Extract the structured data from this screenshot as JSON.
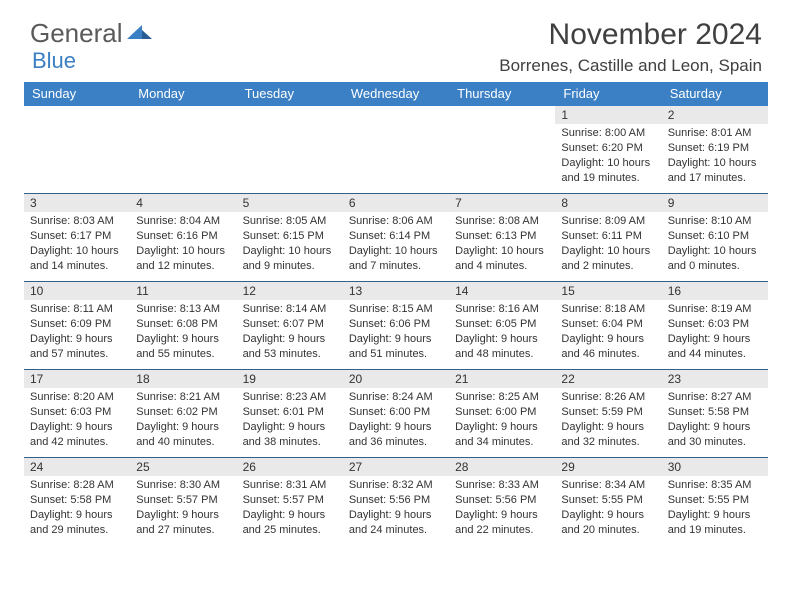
{
  "brand": {
    "word1": "General",
    "word2": "Blue"
  },
  "title": "November 2024",
  "location": "Borrenes, Castille and Leon, Spain",
  "colors": {
    "header_bg": "#3b7fc4",
    "header_text": "#ffffff",
    "daynum_bg": "#e9e9e9",
    "row_border": "#345f8a",
    "logo_gray": "#5a5a5a",
    "logo_blue": "#3b7fc4"
  },
  "weekdays": [
    "Sunday",
    "Monday",
    "Tuesday",
    "Wednesday",
    "Thursday",
    "Friday",
    "Saturday"
  ],
  "weeks": [
    [
      {
        "num": "",
        "sunrise": "",
        "sunset": "",
        "daylight": "",
        "empty": true
      },
      {
        "num": "",
        "sunrise": "",
        "sunset": "",
        "daylight": "",
        "empty": true
      },
      {
        "num": "",
        "sunrise": "",
        "sunset": "",
        "daylight": "",
        "empty": true
      },
      {
        "num": "",
        "sunrise": "",
        "sunset": "",
        "daylight": "",
        "empty": true
      },
      {
        "num": "",
        "sunrise": "",
        "sunset": "",
        "daylight": "",
        "empty": true
      },
      {
        "num": "1",
        "sunrise": "Sunrise: 8:00 AM",
        "sunset": "Sunset: 6:20 PM",
        "daylight": "Daylight: 10 hours and 19 minutes."
      },
      {
        "num": "2",
        "sunrise": "Sunrise: 8:01 AM",
        "sunset": "Sunset: 6:19 PM",
        "daylight": "Daylight: 10 hours and 17 minutes."
      }
    ],
    [
      {
        "num": "3",
        "sunrise": "Sunrise: 8:03 AM",
        "sunset": "Sunset: 6:17 PM",
        "daylight": "Daylight: 10 hours and 14 minutes."
      },
      {
        "num": "4",
        "sunrise": "Sunrise: 8:04 AM",
        "sunset": "Sunset: 6:16 PM",
        "daylight": "Daylight: 10 hours and 12 minutes."
      },
      {
        "num": "5",
        "sunrise": "Sunrise: 8:05 AM",
        "sunset": "Sunset: 6:15 PM",
        "daylight": "Daylight: 10 hours and 9 minutes."
      },
      {
        "num": "6",
        "sunrise": "Sunrise: 8:06 AM",
        "sunset": "Sunset: 6:14 PM",
        "daylight": "Daylight: 10 hours and 7 minutes."
      },
      {
        "num": "7",
        "sunrise": "Sunrise: 8:08 AM",
        "sunset": "Sunset: 6:13 PM",
        "daylight": "Daylight: 10 hours and 4 minutes."
      },
      {
        "num": "8",
        "sunrise": "Sunrise: 8:09 AM",
        "sunset": "Sunset: 6:11 PM",
        "daylight": "Daylight: 10 hours and 2 minutes."
      },
      {
        "num": "9",
        "sunrise": "Sunrise: 8:10 AM",
        "sunset": "Sunset: 6:10 PM",
        "daylight": "Daylight: 10 hours and 0 minutes."
      }
    ],
    [
      {
        "num": "10",
        "sunrise": "Sunrise: 8:11 AM",
        "sunset": "Sunset: 6:09 PM",
        "daylight": "Daylight: 9 hours and 57 minutes."
      },
      {
        "num": "11",
        "sunrise": "Sunrise: 8:13 AM",
        "sunset": "Sunset: 6:08 PM",
        "daylight": "Daylight: 9 hours and 55 minutes."
      },
      {
        "num": "12",
        "sunrise": "Sunrise: 8:14 AM",
        "sunset": "Sunset: 6:07 PM",
        "daylight": "Daylight: 9 hours and 53 minutes."
      },
      {
        "num": "13",
        "sunrise": "Sunrise: 8:15 AM",
        "sunset": "Sunset: 6:06 PM",
        "daylight": "Daylight: 9 hours and 51 minutes."
      },
      {
        "num": "14",
        "sunrise": "Sunrise: 8:16 AM",
        "sunset": "Sunset: 6:05 PM",
        "daylight": "Daylight: 9 hours and 48 minutes."
      },
      {
        "num": "15",
        "sunrise": "Sunrise: 8:18 AM",
        "sunset": "Sunset: 6:04 PM",
        "daylight": "Daylight: 9 hours and 46 minutes."
      },
      {
        "num": "16",
        "sunrise": "Sunrise: 8:19 AM",
        "sunset": "Sunset: 6:03 PM",
        "daylight": "Daylight: 9 hours and 44 minutes."
      }
    ],
    [
      {
        "num": "17",
        "sunrise": "Sunrise: 8:20 AM",
        "sunset": "Sunset: 6:03 PM",
        "daylight": "Daylight: 9 hours and 42 minutes."
      },
      {
        "num": "18",
        "sunrise": "Sunrise: 8:21 AM",
        "sunset": "Sunset: 6:02 PM",
        "daylight": "Daylight: 9 hours and 40 minutes."
      },
      {
        "num": "19",
        "sunrise": "Sunrise: 8:23 AM",
        "sunset": "Sunset: 6:01 PM",
        "daylight": "Daylight: 9 hours and 38 minutes."
      },
      {
        "num": "20",
        "sunrise": "Sunrise: 8:24 AM",
        "sunset": "Sunset: 6:00 PM",
        "daylight": "Daylight: 9 hours and 36 minutes."
      },
      {
        "num": "21",
        "sunrise": "Sunrise: 8:25 AM",
        "sunset": "Sunset: 6:00 PM",
        "daylight": "Daylight: 9 hours and 34 minutes."
      },
      {
        "num": "22",
        "sunrise": "Sunrise: 8:26 AM",
        "sunset": "Sunset: 5:59 PM",
        "daylight": "Daylight: 9 hours and 32 minutes."
      },
      {
        "num": "23",
        "sunrise": "Sunrise: 8:27 AM",
        "sunset": "Sunset: 5:58 PM",
        "daylight": "Daylight: 9 hours and 30 minutes."
      }
    ],
    [
      {
        "num": "24",
        "sunrise": "Sunrise: 8:28 AM",
        "sunset": "Sunset: 5:58 PM",
        "daylight": "Daylight: 9 hours and 29 minutes."
      },
      {
        "num": "25",
        "sunrise": "Sunrise: 8:30 AM",
        "sunset": "Sunset: 5:57 PM",
        "daylight": "Daylight: 9 hours and 27 minutes."
      },
      {
        "num": "26",
        "sunrise": "Sunrise: 8:31 AM",
        "sunset": "Sunset: 5:57 PM",
        "daylight": "Daylight: 9 hours and 25 minutes."
      },
      {
        "num": "27",
        "sunrise": "Sunrise: 8:32 AM",
        "sunset": "Sunset: 5:56 PM",
        "daylight": "Daylight: 9 hours and 24 minutes."
      },
      {
        "num": "28",
        "sunrise": "Sunrise: 8:33 AM",
        "sunset": "Sunset: 5:56 PM",
        "daylight": "Daylight: 9 hours and 22 minutes."
      },
      {
        "num": "29",
        "sunrise": "Sunrise: 8:34 AM",
        "sunset": "Sunset: 5:55 PM",
        "daylight": "Daylight: 9 hours and 20 minutes."
      },
      {
        "num": "30",
        "sunrise": "Sunrise: 8:35 AM",
        "sunset": "Sunset: 5:55 PM",
        "daylight": "Daylight: 9 hours and 19 minutes."
      }
    ]
  ]
}
